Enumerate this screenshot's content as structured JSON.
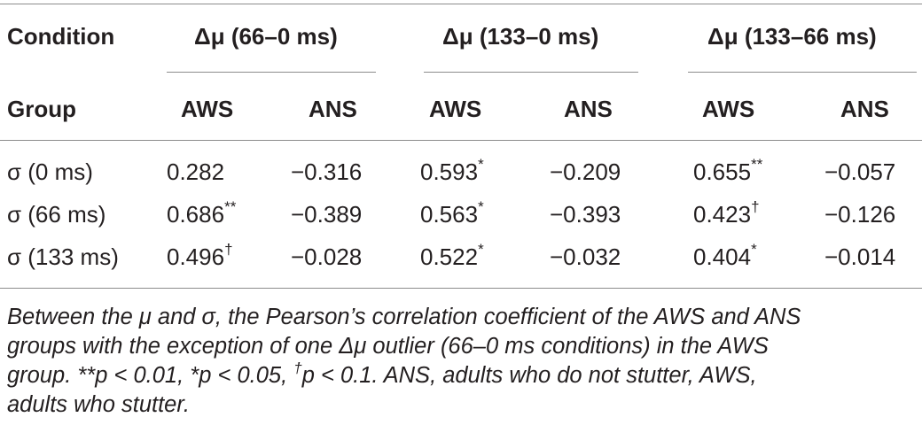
{
  "table": {
    "header1": {
      "label": "Condition",
      "groups": [
        "Δμ (66–0 ms)",
        "Δμ (133–0 ms)",
        "Δμ (133–66 ms)"
      ]
    },
    "header2": {
      "label": "Group",
      "columns": [
        "AWS",
        "ANS",
        "AWS",
        "ANS",
        "AWS",
        "ANS"
      ]
    },
    "rows": [
      {
        "label": "σ (0 ms)",
        "cells": [
          {
            "v": "0.282",
            "m": ""
          },
          {
            "v": "−0.316",
            "m": ""
          },
          {
            "v": "0.593",
            "m": "*"
          },
          {
            "v": "−0.209",
            "m": ""
          },
          {
            "v": "0.655",
            "m": "**"
          },
          {
            "v": "−0.057",
            "m": ""
          }
        ]
      },
      {
        "label": "σ (66 ms)",
        "cells": [
          {
            "v": "0.686",
            "m": "**"
          },
          {
            "v": "−0.389",
            "m": ""
          },
          {
            "v": "0.563",
            "m": "*"
          },
          {
            "v": "−0.393",
            "m": ""
          },
          {
            "v": "0.423",
            "m": "†"
          },
          {
            "v": "−0.126",
            "m": ""
          }
        ]
      },
      {
        "label": "σ (133 ms)",
        "cells": [
          {
            "v": "0.496",
            "m": "†"
          },
          {
            "v": "−0.028",
            "m": ""
          },
          {
            "v": "0.522",
            "m": "*"
          },
          {
            "v": "−0.032",
            "m": ""
          },
          {
            "v": "0.404",
            "m": "*"
          },
          {
            "v": "−0.014",
            "m": ""
          }
        ]
      }
    ]
  },
  "footnote": {
    "line1": "Between the μ and σ, the Pearson’s correlation coefficient of the AWS and ANS",
    "line2": "groups with the exception of one Δμ outlier (66–0 ms conditions) in the AWS",
    "line3a": "group. **p < 0.01, *p < 0.05, ",
    "dagger": "†",
    "line3b": "p < 0.1. ANS, adults who do not stutter, AWS,",
    "line4": "adults who stutter."
  }
}
